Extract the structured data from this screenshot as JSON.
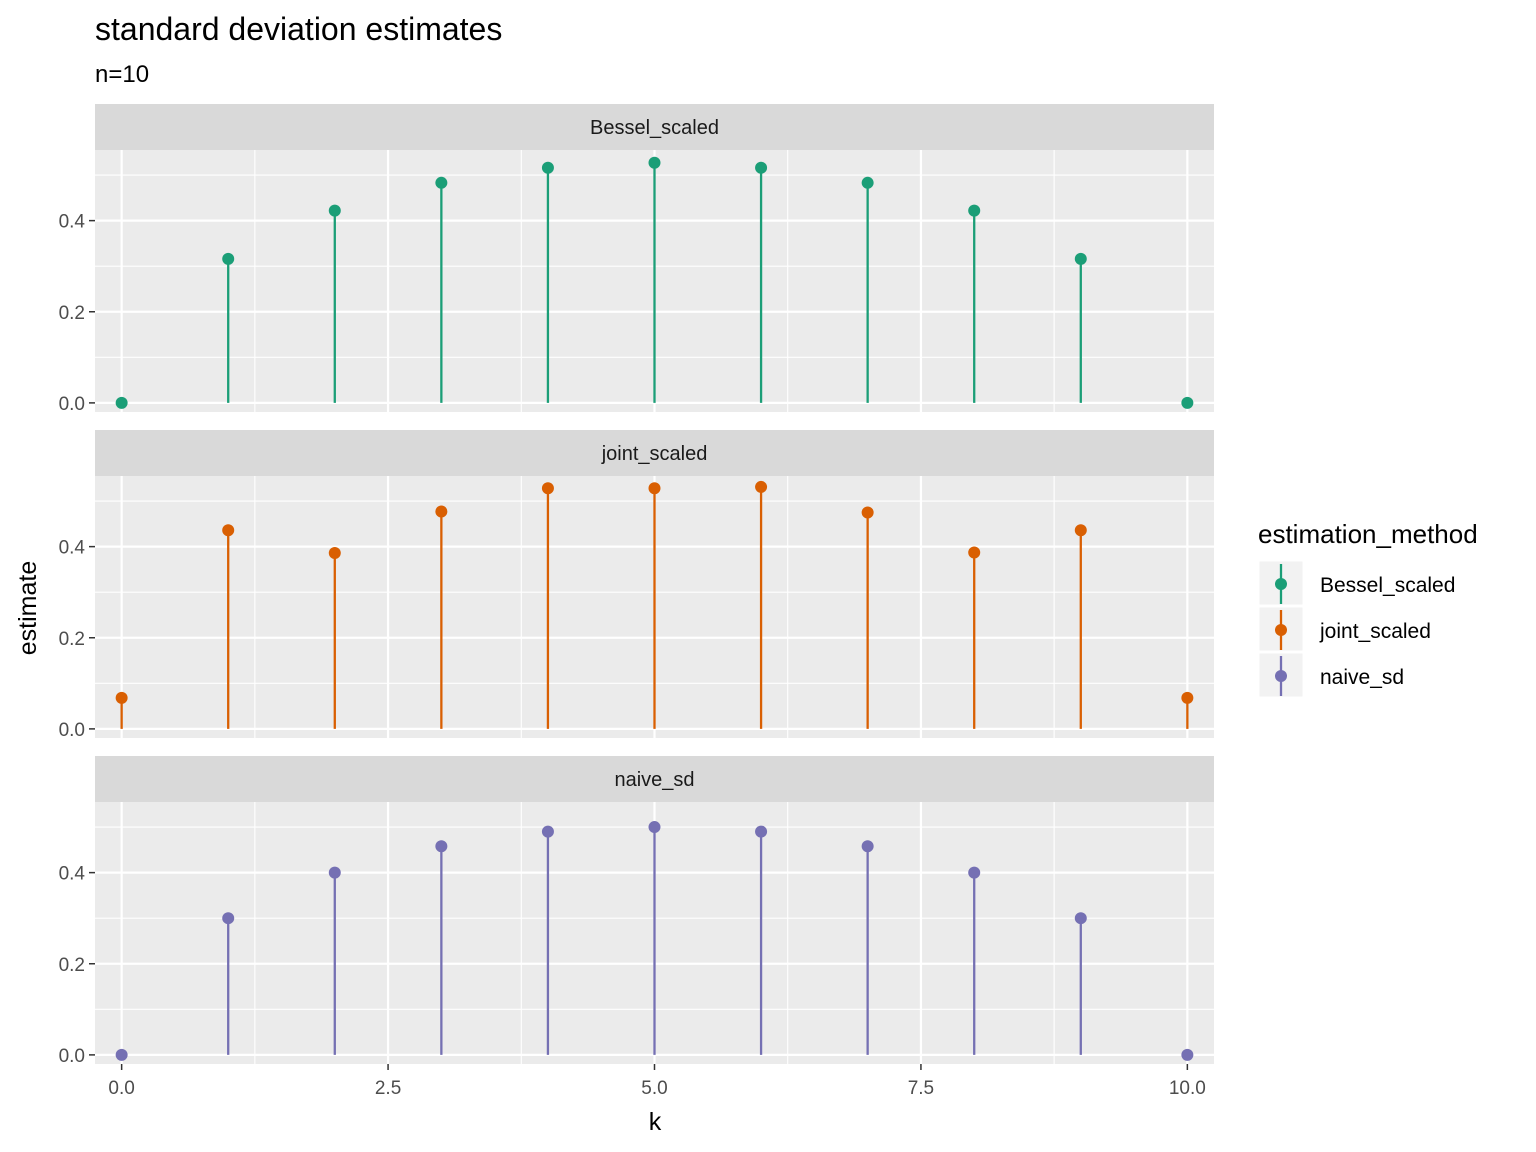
{
  "chart_data": {
    "type": "lollipop",
    "title": "standard deviation estimates",
    "subtitle": "n=10",
    "xlabel": "k",
    "ylabel": "estimate",
    "xlim": [
      -0.25,
      10.25
    ],
    "ylim": [
      -0.02,
      0.555
    ],
    "x_ticks": [
      0,
      2.5,
      5,
      7.5,
      10
    ],
    "x_tick_labels": [
      "0.0",
      "2.5",
      "5.0",
      "7.5",
      "10.0"
    ],
    "y_ticks": [
      0,
      0.2,
      0.4
    ],
    "y_tick_labels": [
      "0.0",
      "0.2",
      "0.4"
    ],
    "grid": true,
    "legend": {
      "title": "estimation_method",
      "placement": "right"
    },
    "series": [
      {
        "name": "Bessel_scaled",
        "color": "#1b9e77",
        "x": [
          0,
          1,
          2,
          3,
          4,
          5,
          6,
          7,
          8,
          9,
          10
        ],
        "values": [
          0.0,
          0.316,
          0.422,
          0.483,
          0.516,
          0.527,
          0.516,
          0.483,
          0.422,
          0.316,
          0.0
        ]
      },
      {
        "name": "joint_scaled",
        "color": "#d95f02",
        "x": [
          0,
          1,
          2,
          3,
          4,
          5,
          6,
          7,
          8,
          9,
          10
        ],
        "values": [
          0.068,
          0.436,
          0.386,
          0.477,
          0.528,
          0.528,
          0.531,
          0.475,
          0.387,
          0.436,
          0.068
        ]
      },
      {
        "name": "naive_sd",
        "color": "#7570b3",
        "x": [
          0,
          1,
          2,
          3,
          4,
          5,
          6,
          7,
          8,
          9,
          10
        ],
        "values": [
          0.0,
          0.3,
          0.4,
          0.458,
          0.49,
          0.5,
          0.49,
          0.458,
          0.4,
          0.3,
          0.0
        ]
      }
    ]
  }
}
